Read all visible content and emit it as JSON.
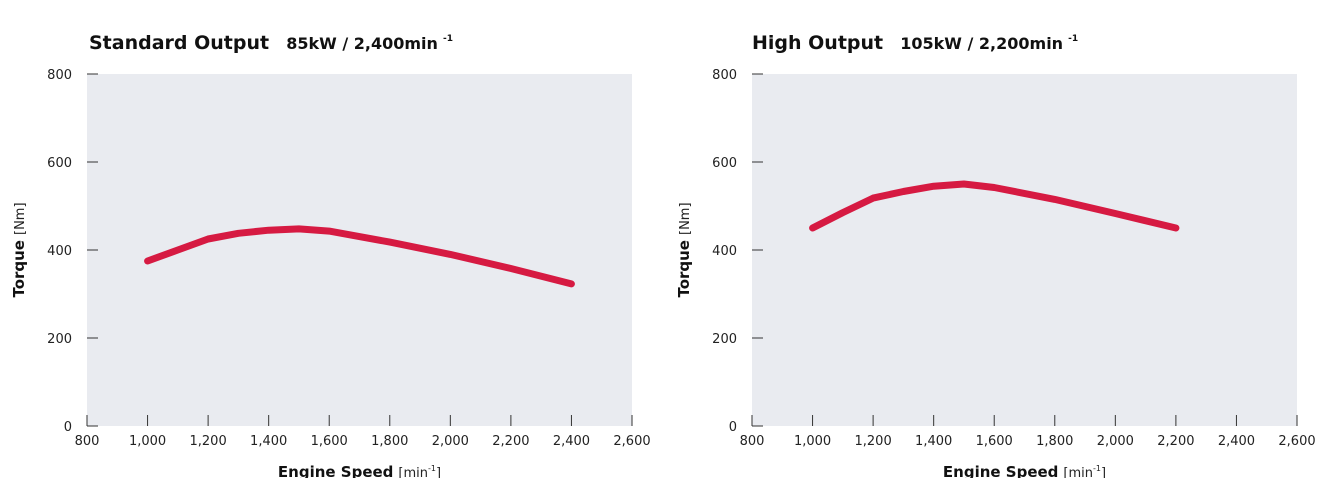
{
  "chart_data": [
    {
      "type": "line",
      "title": "Standard Output",
      "subtitle": "85kW / 2,400min",
      "subtitle_sup": "-1",
      "xlabel": "Engine Speed",
      "xunit": "[min",
      "xunit_sup": "-1",
      "xunit_close": "]",
      "ylabel": "Torque",
      "yunit": "[Nm]",
      "xlim": [
        800,
        2600
      ],
      "ylim": [
        0,
        800
      ],
      "x_ticks": [
        800,
        1000,
        1200,
        1400,
        1600,
        1800,
        2000,
        2200,
        2400,
        2600
      ],
      "x_tick_labels": [
        "800",
        "1,000",
        "1,200",
        "1,400",
        "1,600",
        "1,800",
        "2,000",
        "2,200",
        "2,400",
        "2,600"
      ],
      "y_ticks": [
        0,
        200,
        400,
        600,
        800
      ],
      "y_tick_labels": [
        "0",
        "200",
        "400",
        "600",
        "800"
      ],
      "grid": false,
      "color": "#d61a42",
      "series": [
        {
          "x": [
            1000,
            1100,
            1200,
            1300,
            1400,
            1500,
            1600,
            1800,
            2000,
            2200,
            2400
          ],
          "y": [
            375,
            400,
            425,
            438,
            445,
            448,
            443,
            418,
            390,
            358,
            323
          ]
        }
      ]
    },
    {
      "type": "line",
      "title": "High Output",
      "subtitle": "105kW / 2,200min",
      "subtitle_sup": "-1",
      "xlabel": "Engine Speed",
      "xunit": "[min",
      "xunit_sup": "-1",
      "xunit_close": "]",
      "ylabel": "Torque",
      "yunit": "[Nm]",
      "xlim": [
        800,
        2600
      ],
      "ylim": [
        0,
        800
      ],
      "x_ticks": [
        800,
        1000,
        1200,
        1400,
        1600,
        1800,
        2000,
        2200,
        2400,
        2600
      ],
      "x_tick_labels": [
        "800",
        "1,000",
        "1,200",
        "1,400",
        "1,600",
        "1,800",
        "2,000",
        "2,200",
        "2,400",
        "2,600"
      ],
      "y_ticks": [
        0,
        200,
        400,
        600,
        800
      ],
      "y_tick_labels": [
        "0",
        "200",
        "400",
        "600",
        "800"
      ],
      "grid": false,
      "color": "#d61a42",
      "series": [
        {
          "x": [
            1000,
            1100,
            1200,
            1300,
            1400,
            1500,
            1600,
            1800,
            2000,
            2200
          ],
          "y": [
            450,
            485,
            518,
            533,
            545,
            550,
            542,
            515,
            483,
            450
          ]
        }
      ]
    }
  ]
}
